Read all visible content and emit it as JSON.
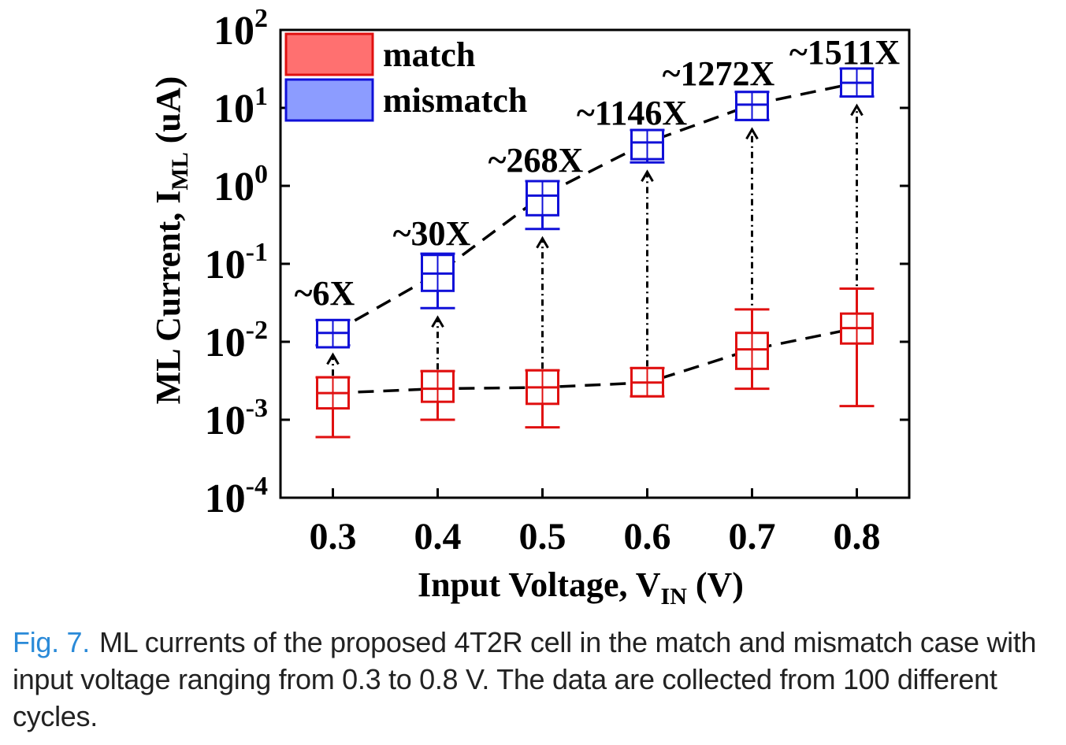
{
  "chart_data": {
    "type": "box",
    "xlabel": "Input Voltage, V",
    "xlabel_sub": "IN",
    "xlabel_unit": " (V)",
    "ylabel": "ML Current, I",
    "ylabel_sub": "ML",
    "ylabel_unit": " (uA)",
    "y_scale": "log",
    "ylim": [
      0.0001,
      100
    ],
    "xlim": [
      0.25,
      0.85
    ],
    "x_ticks": [
      "0.3",
      "0.4",
      "0.5",
      "0.6",
      "0.7",
      "0.8"
    ],
    "y_ticks": [
      {
        "base": "10",
        "exp": "2"
      },
      {
        "base": "10",
        "exp": "1"
      },
      {
        "base": "10",
        "exp": "0"
      },
      {
        "base": "10",
        "exp": "-1"
      },
      {
        "base": "10",
        "exp": "-2"
      },
      {
        "base": "10",
        "exp": "-3"
      },
      {
        "base": "10",
        "exp": "-4"
      }
    ],
    "legend_position": "top-left",
    "colors": {
      "match": "#e01010",
      "mismatch": "#1010d8",
      "match_fill": "#ff7070",
      "mismatch_fill": "#8c9cff"
    },
    "series": [
      {
        "name": "match",
        "x": [
          0.3,
          0.4,
          0.5,
          0.6,
          0.7,
          0.8
        ],
        "whisker_low": [
          0.0006,
          0.001,
          0.0008,
          0.002,
          0.0025,
          0.0015
        ],
        "q1": [
          0.0014,
          0.0017,
          0.0016,
          0.002,
          0.0045,
          0.0095
        ],
        "median": [
          0.0022,
          0.0025,
          0.0026,
          0.003,
          0.008,
          0.015
        ],
        "q3": [
          0.0035,
          0.0042,
          0.0043,
          0.0046,
          0.013,
          0.023
        ],
        "whisker_high": [
          0.0035,
          0.0042,
          0.0043,
          0.0046,
          0.026,
          0.048
        ]
      },
      {
        "name": "mismatch",
        "x": [
          0.3,
          0.4,
          0.5,
          0.6,
          0.7,
          0.8
        ],
        "whisker_low": [
          0.009,
          0.027,
          0.28,
          2.0,
          7.0,
          14
        ],
        "q1": [
          0.0085,
          0.045,
          0.42,
          2.2,
          7.0,
          14
        ],
        "median": [
          0.013,
          0.075,
          0.75,
          3.6,
          11,
          21
        ],
        "q3": [
          0.019,
          0.13,
          1.15,
          5.2,
          16,
          32
        ],
        "whisker_high": [
          0.019,
          0.135,
          1.15,
          5.2,
          16,
          32
        ]
      }
    ],
    "annotations": [
      "~6X",
      "~30X",
      "~268X",
      "~1146X",
      "~1272X",
      "~1511X"
    ]
  },
  "caption": {
    "label": "Fig. 7.",
    "text": "ML currents of the proposed 4T2R cell in the match and mismatch case with input voltage ranging from 0.3 to 0.8 V. The data are collected from 100 different cycles."
  }
}
